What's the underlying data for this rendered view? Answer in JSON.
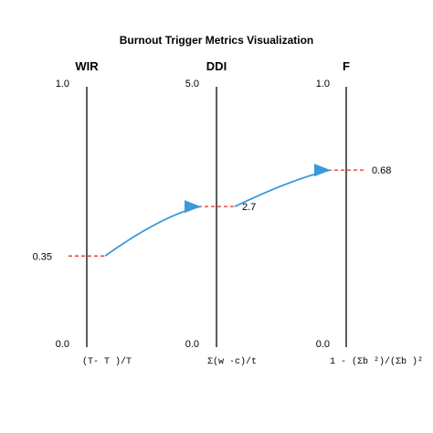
{
  "title": "Burnout Trigger Metrics Visualization",
  "axes": [
    {
      "name": "WIR",
      "top_label": "1.0",
      "bottom_label": "0.0",
      "formula": "(T- T )/T",
      "min": 0.0,
      "max": 1.0,
      "value": 0.35,
      "value_label": "0.35",
      "value_label_side": "left"
    },
    {
      "name": "DDI",
      "top_label": "5.0",
      "bottom_label": "0.0",
      "formula": "Σ(w ·c)/t",
      "min": 0.0,
      "max": 5.0,
      "value": 2.7,
      "value_label": "2.7",
      "value_label_side": "right"
    },
    {
      "name": "F",
      "top_label": "1.0",
      "bottom_label": "0.0",
      "formula": "1 - (Σb ²)/(Σb   )²",
      "min": 0.0,
      "max": 1.0,
      "value": 0.68,
      "value_label": "0.68",
      "value_label_side": "right"
    }
  ],
  "colors": {
    "axis_line": "#333333",
    "marker_dash": "#e8413c",
    "flow_line": "#3a9ad9",
    "arrow": "#3a9ad9"
  }
}
